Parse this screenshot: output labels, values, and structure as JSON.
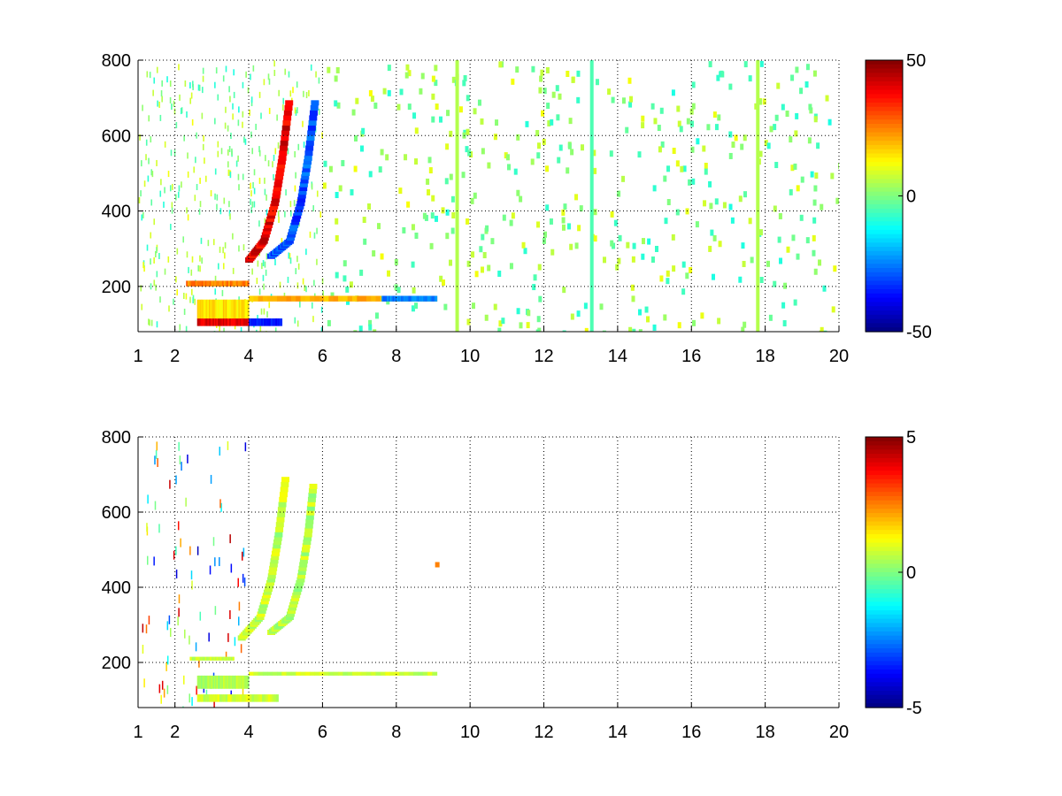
{
  "chart_data": [
    {
      "type": "heatmap",
      "title": "",
      "xlabel": "",
      "ylabel": "",
      "xlim": [
        1,
        20
      ],
      "ylim": [
        80,
        800
      ],
      "xticks": [
        "1",
        "2",
        "4",
        "6",
        "8",
        "10",
        "12",
        "14",
        "16",
        "18",
        "20"
      ],
      "yticks": [
        "200",
        "400",
        "600",
        "800"
      ],
      "grid": true,
      "colorbar": {
        "colormap": "jet",
        "clim": [
          -50,
          50
        ],
        "ticks": [
          "50",
          "0",
          "-50"
        ]
      },
      "features": [
        {
          "kind": "band",
          "x": [
            2.6,
            4.0
          ],
          "y": [
            95,
            115
          ],
          "value": 40
        },
        {
          "kind": "band",
          "x": [
            4.0,
            4.9
          ],
          "y": [
            95,
            115
          ],
          "value": -35
        },
        {
          "kind": "band",
          "x": [
            2.6,
            4.0
          ],
          "y": [
            115,
            165
          ],
          "value": 15
        },
        {
          "kind": "band",
          "x": [
            2.3,
            4.0
          ],
          "y": [
            200,
            215
          ],
          "value": 25
        },
        {
          "kind": "band",
          "x": [
            4.0,
            9.1
          ],
          "y": [
            160,
            175
          ],
          "value": 20
        },
        {
          "kind": "band",
          "x": [
            7.6,
            9.1
          ],
          "y": [
            160,
            175
          ],
          "value": -25
        },
        {
          "kind": "curve",
          "x": [
            4.0,
            4.4,
            4.7,
            4.9,
            5.1
          ],
          "y": [
            270,
            320,
            420,
            540,
            700
          ],
          "value": 40
        },
        {
          "kind": "curve",
          "x": [
            4.6,
            5.1,
            5.4,
            5.6,
            5.8
          ],
          "y": [
            280,
            320,
            420,
            540,
            700
          ],
          "value": -30
        },
        {
          "kind": "stripe",
          "x": 9.65,
          "y": [
            80,
            800
          ],
          "value": 5
        },
        {
          "kind": "stripe",
          "x": 13.3,
          "y": [
            80,
            800
          ],
          "value": -5
        },
        {
          "kind": "stripe",
          "x": 17.8,
          "y": [
            80,
            800
          ],
          "value": 5
        }
      ]
    },
    {
      "type": "heatmap",
      "title": "",
      "xlabel": "",
      "ylabel": "",
      "xlim": [
        1,
        20
      ],
      "ylim": [
        80,
        800
      ],
      "xticks": [
        "1",
        "2",
        "4",
        "6",
        "8",
        "10",
        "12",
        "14",
        "16",
        "18",
        "20"
      ],
      "yticks": [
        "200",
        "400",
        "600",
        "800"
      ],
      "grid": true,
      "colorbar": {
        "colormap": "jet",
        "clim": [
          -5,
          5
        ],
        "ticks": [
          "5",
          "0",
          "-5"
        ]
      },
      "features": [
        {
          "kind": "band",
          "x": [
            2.6,
            4.8
          ],
          "y": [
            95,
            115
          ],
          "value": 0.8
        },
        {
          "kind": "band",
          "x": [
            2.6,
            4.0
          ],
          "y": [
            130,
            165
          ],
          "value": 0.5
        },
        {
          "kind": "band",
          "x": [
            2.4,
            3.6
          ],
          "y": [
            205,
            215
          ],
          "value": 0.6
        },
        {
          "kind": "band",
          "x": [
            4.0,
            9.1
          ],
          "y": [
            165,
            175
          ],
          "value": 0.7
        },
        {
          "kind": "curve",
          "x": [
            3.8,
            4.3,
            4.6,
            4.8,
            5.0
          ],
          "y": [
            265,
            320,
            420,
            540,
            700
          ],
          "value": 0.6
        },
        {
          "kind": "curve",
          "x": [
            4.6,
            5.1,
            5.4,
            5.6,
            5.75
          ],
          "y": [
            280,
            320,
            420,
            540,
            680
          ],
          "value": 0.5
        },
        {
          "kind": "spot",
          "x": 9.1,
          "y": 460,
          "value": 2.5
        }
      ]
    }
  ]
}
